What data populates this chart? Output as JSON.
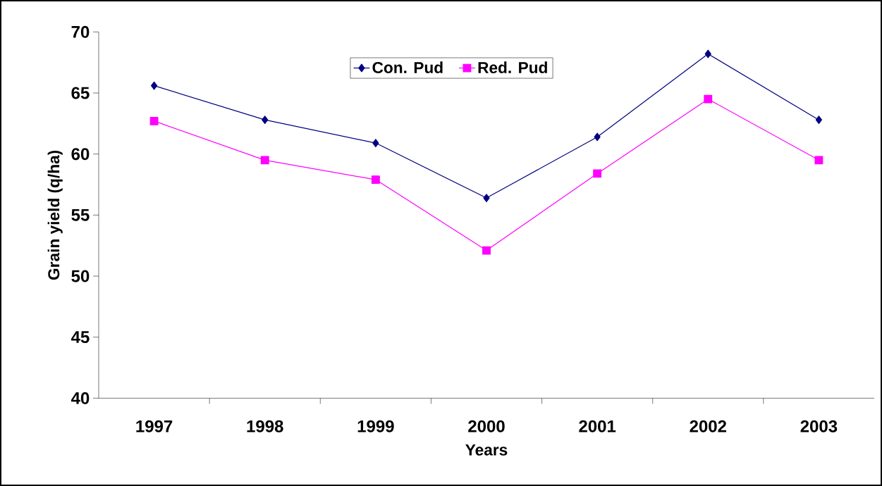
{
  "chart_data": {
    "type": "line",
    "xlabel": "Years",
    "ylabel": "Grain yield (q/ha)",
    "categories": [
      "1997",
      "1998",
      "1999",
      "2000",
      "2001",
      "2002",
      "2003"
    ],
    "series": [
      {
        "name": "Con. Pud",
        "color": "#000080",
        "marker": "diamond",
        "values": [
          65.6,
          62.8,
          60.9,
          56.4,
          61.4,
          68.2,
          62.8
        ]
      },
      {
        "name": "Red. Pud",
        "color": "#ff00ff",
        "marker": "square",
        "values": [
          62.7,
          59.5,
          57.9,
          52.1,
          58.4,
          64.5,
          59.5
        ]
      }
    ],
    "ylim": [
      40,
      70
    ],
    "yticks": [
      40,
      45,
      50,
      55,
      60,
      65,
      70
    ],
    "grid": false,
    "legend": "top",
    "line_style": "solid"
  }
}
